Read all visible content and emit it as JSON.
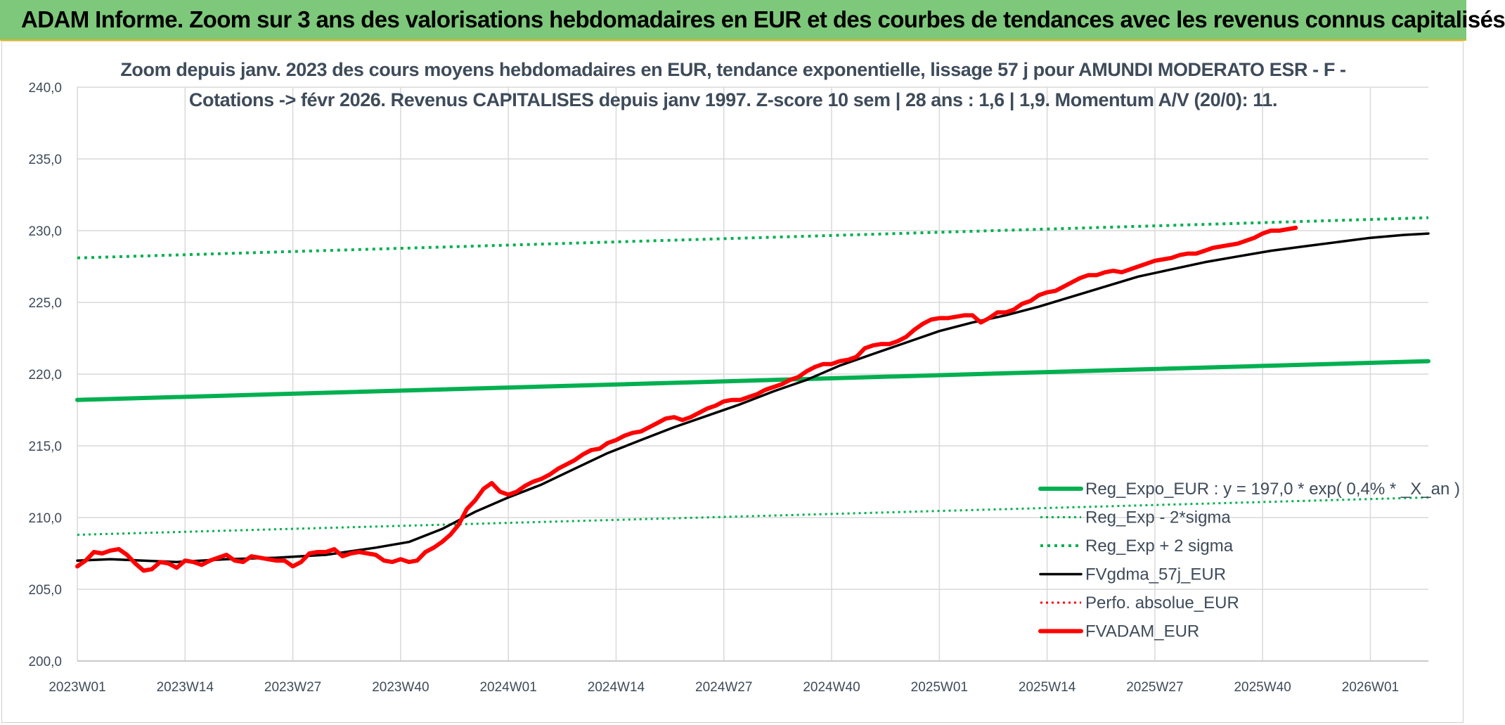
{
  "banner": {
    "title": "ADAM Informe. Zoom sur 3 ans des valorisations hebdomadaires en EUR et des courbes de tendances avec les revenus connus capitalisés"
  },
  "chart_data": {
    "type": "line",
    "title_line1": "Zoom depuis janv. 2023 des cours moyens hebdomadaires en EUR, tendance exponentielle, lissage 57 j pour AMUNDI MODERATO ESR - F -",
    "title_line2": "Cotations -> févr 2026. Revenus CAPITALISES depuis janv 1997. Z-score 10 sem | 28 ans : 1,6 | 1,9. Momentum A/V (20/0): 11.",
    "xlabel": "",
    "ylabel": "",
    "ylim": [
      200,
      240
    ],
    "y_ticks": [
      "200,0",
      "205,0",
      "210,0",
      "215,0",
      "220,0",
      "225,0",
      "230,0",
      "235,0",
      "240,0"
    ],
    "x_ticks": [
      "2023W01",
      "2023W14",
      "2023W27",
      "2023W40",
      "2024W01",
      "2024W14",
      "2024W27",
      "2024W40",
      "2025W01",
      "2025W14",
      "2025W27",
      "2025W40",
      "2026W01"
    ],
    "x_range_weeks": [
      0,
      163
    ],
    "grid": true,
    "legend_position": "right",
    "series": [
      {
        "name": "Reg_Expo_EUR : y = 197,0 * exp( 0,4% * _X_an )",
        "color": "#00b050",
        "style": "solid-thick",
        "points": [
          [
            0,
            218.2
          ],
          [
            163,
            220.9
          ]
        ]
      },
      {
        "name": "Reg_Exp - 2*sigma",
        "color": "#00b050",
        "style": "dotted",
        "points": [
          [
            0,
            208.8
          ],
          [
            163,
            211.4
          ]
        ]
      },
      {
        "name": "Reg_Exp + 2 sigma",
        "color": "#00b050",
        "style": "dotted-thick",
        "points": [
          [
            0,
            228.1
          ],
          [
            163,
            230.9
          ]
        ]
      },
      {
        "name": "FVgdma_57j_EUR",
        "color": "#000000",
        "style": "solid",
        "points": [
          [
            0,
            207.0
          ],
          [
            4,
            207.1
          ],
          [
            8,
            207.0
          ],
          [
            12,
            206.9
          ],
          [
            18,
            207.1
          ],
          [
            24,
            207.2
          ],
          [
            30,
            207.4
          ],
          [
            36,
            207.9
          ],
          [
            40,
            208.3
          ],
          [
            44,
            209.2
          ],
          [
            48,
            210.4
          ],
          [
            52,
            211.4
          ],
          [
            56,
            212.3
          ],
          [
            60,
            213.4
          ],
          [
            64,
            214.5
          ],
          [
            68,
            215.4
          ],
          [
            72,
            216.3
          ],
          [
            76,
            217.1
          ],
          [
            80,
            217.9
          ],
          [
            84,
            218.8
          ],
          [
            88,
            219.6
          ],
          [
            92,
            220.6
          ],
          [
            96,
            221.4
          ],
          [
            100,
            222.2
          ],
          [
            104,
            223.0
          ],
          [
            108,
            223.6
          ],
          [
            112,
            224.1
          ],
          [
            116,
            224.7
          ],
          [
            120,
            225.4
          ],
          [
            124,
            226.1
          ],
          [
            128,
            226.8
          ],
          [
            132,
            227.3
          ],
          [
            136,
            227.8
          ],
          [
            140,
            228.2
          ],
          [
            144,
            228.6
          ],
          [
            148,
            228.9
          ],
          [
            152,
            229.2
          ],
          [
            156,
            229.5
          ],
          [
            160,
            229.7
          ],
          [
            163,
            229.8
          ]
        ]
      },
      {
        "name": "Perfo. absolue_EUR",
        "color": "#ff0000",
        "style": "dotted",
        "points": []
      },
      {
        "name": "FVADAM_EUR",
        "color": "#ff0000",
        "style": "solid-thick",
        "points": [
          [
            0,
            206.6
          ],
          [
            1,
            207.0
          ],
          [
            2,
            207.6
          ],
          [
            3,
            207.5
          ],
          [
            4,
            207.7
          ],
          [
            5,
            207.8
          ],
          [
            6,
            207.4
          ],
          [
            7,
            206.8
          ],
          [
            8,
            206.3
          ],
          [
            9,
            206.4
          ],
          [
            10,
            206.9
          ],
          [
            11,
            206.8
          ],
          [
            12,
            206.5
          ],
          [
            13,
            207.0
          ],
          [
            14,
            206.9
          ],
          [
            15,
            206.7
          ],
          [
            16,
            207.0
          ],
          [
            17,
            207.2
          ],
          [
            18,
            207.4
          ],
          [
            19,
            207.0
          ],
          [
            20,
            206.9
          ],
          [
            21,
            207.3
          ],
          [
            22,
            207.2
          ],
          [
            23,
            207.1
          ],
          [
            24,
            207.0
          ],
          [
            25,
            207.0
          ],
          [
            26,
            206.6
          ],
          [
            27,
            206.9
          ],
          [
            28,
            207.5
          ],
          [
            29,
            207.6
          ],
          [
            30,
            207.6
          ],
          [
            31,
            207.8
          ],
          [
            32,
            207.3
          ],
          [
            33,
            207.5
          ],
          [
            34,
            207.6
          ],
          [
            35,
            207.5
          ],
          [
            36,
            207.4
          ],
          [
            37,
            207.0
          ],
          [
            38,
            206.9
          ],
          [
            39,
            207.1
          ],
          [
            40,
            206.9
          ],
          [
            41,
            207.0
          ],
          [
            42,
            207.6
          ],
          [
            43,
            207.9
          ],
          [
            44,
            208.3
          ],
          [
            45,
            208.8
          ],
          [
            46,
            209.5
          ],
          [
            47,
            210.6
          ],
          [
            48,
            211.2
          ],
          [
            49,
            212.0
          ],
          [
            50,
            212.4
          ],
          [
            51,
            211.8
          ],
          [
            52,
            211.6
          ],
          [
            53,
            211.8
          ],
          [
            54,
            212.2
          ],
          [
            55,
            212.5
          ],
          [
            56,
            212.7
          ],
          [
            57,
            213.0
          ],
          [
            58,
            213.4
          ],
          [
            59,
            213.7
          ],
          [
            60,
            214.0
          ],
          [
            61,
            214.4
          ],
          [
            62,
            214.7
          ],
          [
            63,
            214.8
          ],
          [
            64,
            215.2
          ],
          [
            65,
            215.4
          ],
          [
            66,
            215.7
          ],
          [
            67,
            215.9
          ],
          [
            68,
            216.0
          ],
          [
            69,
            216.3
          ],
          [
            70,
            216.6
          ],
          [
            71,
            216.9
          ],
          [
            72,
            217.0
          ],
          [
            73,
            216.8
          ],
          [
            74,
            217.0
          ],
          [
            75,
            217.3
          ],
          [
            76,
            217.6
          ],
          [
            77,
            217.8
          ],
          [
            78,
            218.1
          ],
          [
            79,
            218.2
          ],
          [
            80,
            218.2
          ],
          [
            81,
            218.4
          ],
          [
            82,
            218.6
          ],
          [
            83,
            218.9
          ],
          [
            84,
            219.1
          ],
          [
            85,
            219.3
          ],
          [
            86,
            219.6
          ],
          [
            87,
            219.8
          ],
          [
            88,
            220.2
          ],
          [
            89,
            220.5
          ],
          [
            90,
            220.7
          ],
          [
            91,
            220.7
          ],
          [
            92,
            220.9
          ],
          [
            93,
            221.0
          ],
          [
            94,
            221.2
          ],
          [
            95,
            221.8
          ],
          [
            96,
            222.0
          ],
          [
            97,
            222.1
          ],
          [
            98,
            222.1
          ],
          [
            99,
            222.3
          ],
          [
            100,
            222.6
          ],
          [
            101,
            223.1
          ],
          [
            102,
            223.5
          ],
          [
            103,
            223.8
          ],
          [
            104,
            223.9
          ],
          [
            105,
            223.9
          ],
          [
            106,
            224.0
          ],
          [
            107,
            224.1
          ],
          [
            108,
            224.1
          ],
          [
            109,
            223.6
          ],
          [
            110,
            223.9
          ],
          [
            111,
            224.3
          ],
          [
            112,
            224.3
          ],
          [
            113,
            224.5
          ],
          [
            114,
            224.9
          ],
          [
            115,
            225.1
          ],
          [
            116,
            225.5
          ],
          [
            117,
            225.7
          ],
          [
            118,
            225.8
          ],
          [
            119,
            226.1
          ],
          [
            120,
            226.4
          ],
          [
            121,
            226.7
          ],
          [
            122,
            226.9
          ],
          [
            123,
            226.9
          ],
          [
            124,
            227.1
          ],
          [
            125,
            227.2
          ],
          [
            126,
            227.1
          ],
          [
            127,
            227.3
          ],
          [
            128,
            227.5
          ],
          [
            129,
            227.7
          ],
          [
            130,
            227.9
          ],
          [
            131,
            228.0
          ],
          [
            132,
            228.1
          ],
          [
            133,
            228.3
          ],
          [
            134,
            228.4
          ],
          [
            135,
            228.4
          ],
          [
            136,
            228.6
          ],
          [
            137,
            228.8
          ],
          [
            138,
            228.9
          ],
          [
            139,
            229.0
          ],
          [
            140,
            229.1
          ],
          [
            141,
            229.3
          ],
          [
            142,
            229.5
          ],
          [
            143,
            229.8
          ],
          [
            144,
            230.0
          ],
          [
            145,
            230.0
          ],
          [
            146,
            230.1
          ],
          [
            147,
            230.2
          ]
        ]
      }
    ]
  }
}
